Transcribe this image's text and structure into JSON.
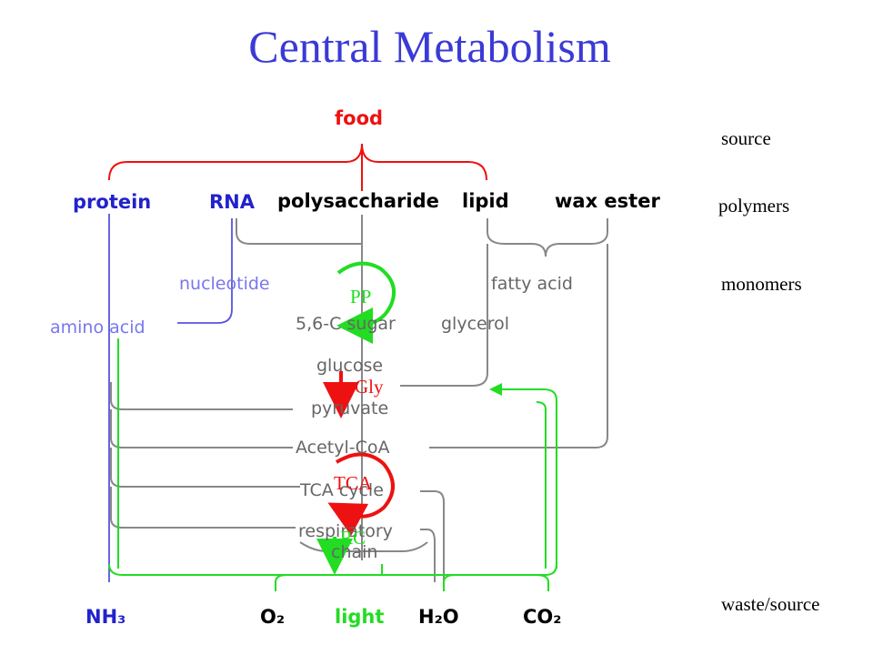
{
  "title": "Central Metabolism",
  "levels": {
    "source": "source",
    "polymers": "polymers",
    "monomers": "monomers",
    "waste": "waste/source"
  },
  "nodes": {
    "food": "food",
    "protein": "protein",
    "rna": "RNA",
    "polysaccharide": "polysaccharide",
    "lipid": "lipid",
    "wax_ester": "wax ester",
    "nucleotide": "nucleotide",
    "fatty_acid": "fatty acid",
    "amino_acid": "amino acid",
    "sugar": "5,6-C sugar",
    "glycerol": "glycerol",
    "glucose": "glucose",
    "pyruvate": "pyruvate",
    "acetyl_coa": "Acetyl-CoA",
    "tca_cycle": "TCA cycle",
    "respiratory": "respiratory",
    "chain": "chain",
    "nh3": "NH₃",
    "o2": "O₂",
    "light": "light",
    "h2o": "H₂O",
    "co2": "CO₂"
  },
  "pathways": {
    "pp": "PP",
    "gly": "Gly",
    "tca": "TCA",
    "rc": "RC"
  },
  "colors": {
    "title": "#3a3ad6",
    "red": "#ee1111",
    "blue": "#2222cc",
    "green": "#22dd22",
    "gray": "#888888"
  }
}
